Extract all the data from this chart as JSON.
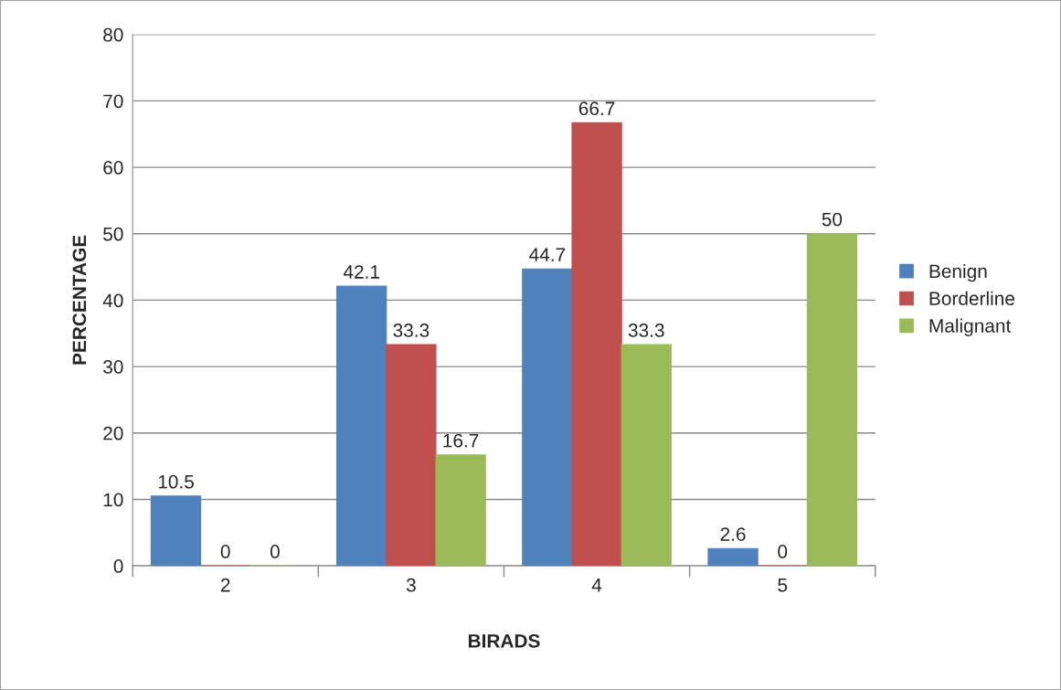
{
  "chart_data": {
    "type": "bar",
    "xlabel": "BIRADS",
    "ylabel": "PERCENTAGE",
    "categories": [
      "2",
      "3",
      "4",
      "5"
    ],
    "series": [
      {
        "name": "Benign",
        "color": "#4f81bd",
        "values": [
          10.5,
          42.1,
          44.7,
          2.6
        ]
      },
      {
        "name": "Borderline",
        "color": "#c0504d",
        "values": [
          0,
          33.3,
          66.7,
          0
        ]
      },
      {
        "name": "Malignant",
        "color": "#9bbb59",
        "values": [
          0,
          16.7,
          33.3,
          50
        ]
      }
    ],
    "ylim": [
      0,
      80
    ],
    "yticks": [
      0,
      10,
      20,
      30,
      40,
      50,
      60,
      70,
      80
    ],
    "grid": "y",
    "legend": "right",
    "data_labels": true
  }
}
